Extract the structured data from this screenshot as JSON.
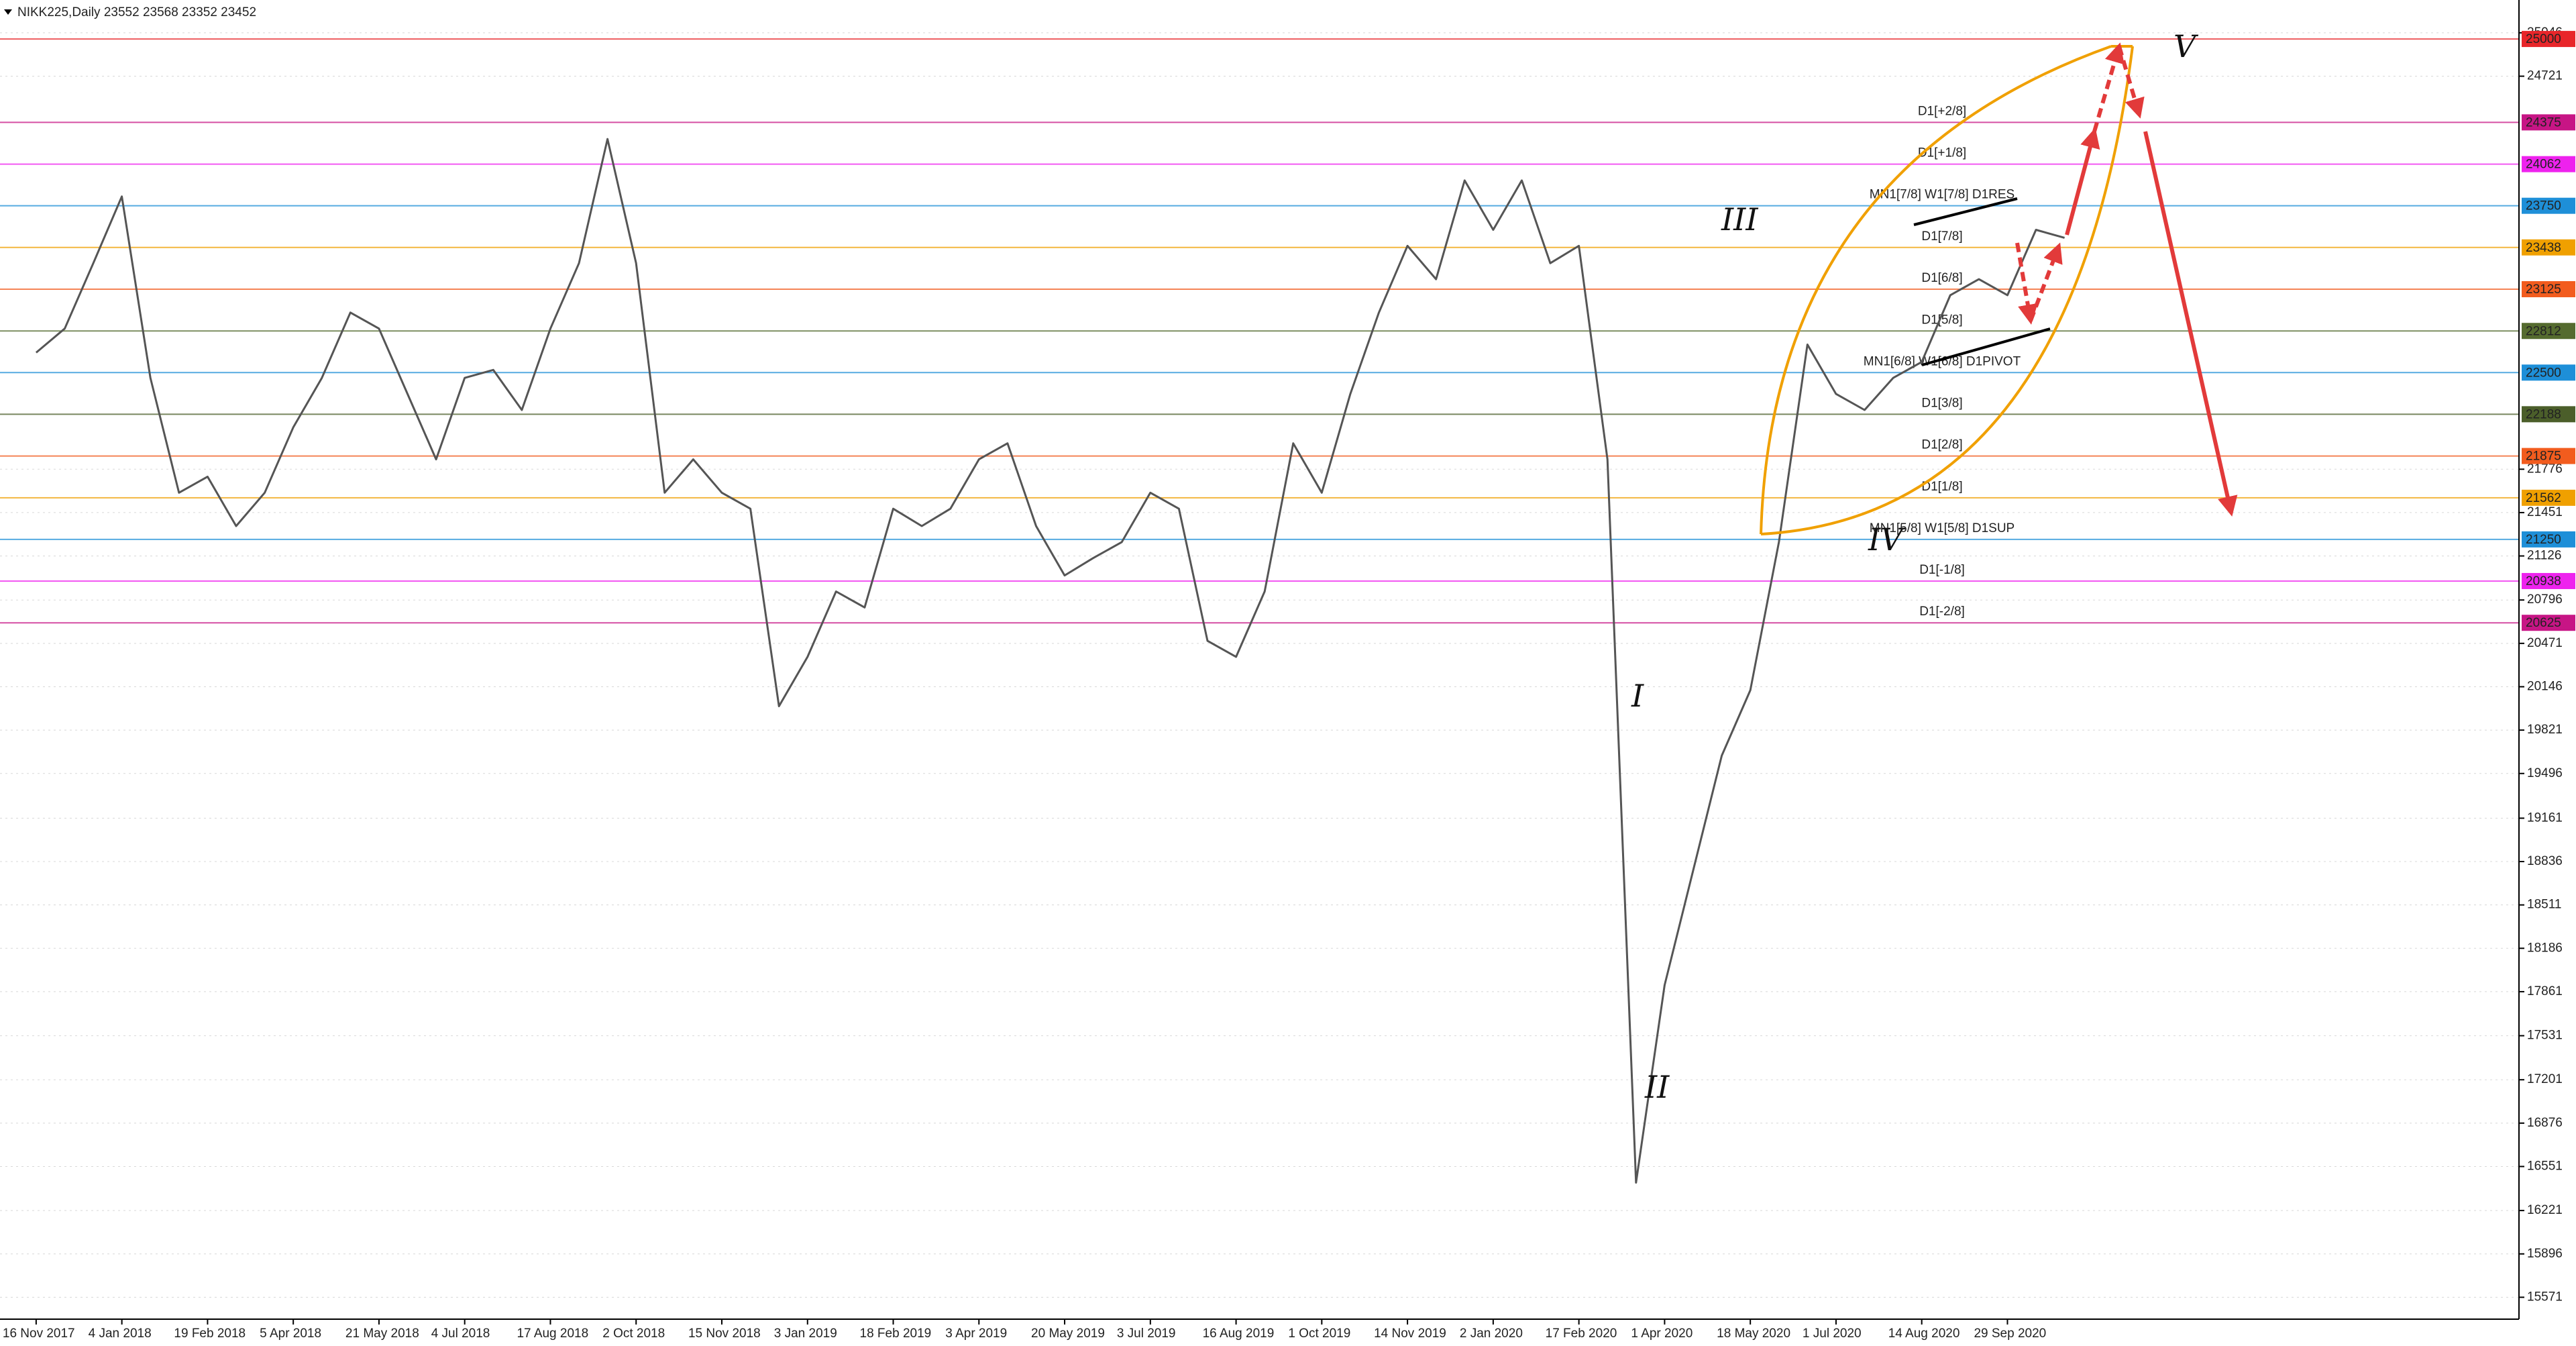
{
  "chart_data": {
    "type": "line",
    "header": "NIKK225,Daily  23552 23568 23352 23452",
    "categories": [
      "16 Nov 2017",
      null,
      null,
      "4 Jan 2018",
      null,
      null,
      "19 Feb 2018",
      null,
      null,
      "5 Apr 2018",
      null,
      null,
      "21 May 2018",
      null,
      null,
      "4 Jul 2018",
      null,
      null,
      "17 Aug 2018",
      null,
      null,
      "2 Oct 2018",
      null,
      null,
      "15 Nov 2018",
      null,
      null,
      "3 Jan 2019",
      null,
      null,
      "18 Feb 2019",
      null,
      null,
      "3 Apr 2019",
      null,
      null,
      "20 May 2019",
      null,
      null,
      "3 Jul 2019",
      null,
      null,
      "16 Aug 2019",
      null,
      null,
      "1 Oct 2019",
      null,
      null,
      "14 Nov 2019",
      null,
      null,
      "2 Jan 2020",
      null,
      null,
      "17 Feb 2020",
      null,
      null,
      "1 Apr 2020",
      null,
      null,
      "18 May 2020",
      null,
      null,
      "1 Jul 2020",
      null,
      null,
      "14 Aug 2020",
      null,
      null,
      "29 Sep 2020",
      null,
      null
    ],
    "series": [
      {
        "name": "NIKK225",
        "color": "#555555",
        "values": [
          22650,
          22830,
          23320,
          23820,
          22460,
          21600,
          21720,
          21350,
          21600,
          22090,
          22460,
          22950,
          22830,
          22340,
          21850,
          22460,
          22520,
          22220,
          22830,
          23320,
          24250,
          23320,
          21600,
          21850,
          21600,
          21480,
          20000,
          20370,
          20860,
          20740,
          21480,
          21350,
          21480,
          21850,
          21970,
          21350,
          20980,
          21110,
          21230,
          21600,
          21480,
          20490,
          20370,
          20860,
          21970,
          21600,
          22340,
          22950,
          23450,
          23200,
          23940,
          23570,
          23940,
          23320,
          23450,
          21850,
          16430,
          17910,
          18770,
          19630,
          20120,
          21230,
          22710,
          22340,
          22220,
          22460,
          22580,
          23080,
          23200,
          23080,
          23570,
          23510
        ]
      }
    ],
    "ylim": [
      15407,
      25292
    ],
    "yticks": [
      25046,
      24721,
      21776,
      21451,
      21126,
      20796,
      20471,
      20146,
      19821,
      19496,
      19161,
      18836,
      18511,
      18186,
      17861,
      17531,
      17201,
      16876,
      16551,
      16221,
      15896,
      15571
    ],
    "grid": true,
    "levels": [
      {
        "value": 25000,
        "color": "#e8262a"
      },
      {
        "value": 24375,
        "color": "#c71585",
        "text": "D1[+2/8]"
      },
      {
        "value": 24062,
        "color": "#ee22ee",
        "text": "D1[+1/8]"
      },
      {
        "value": 23750,
        "color": "#1e8fd8",
        "text": "MN1[7/8] W1[7/8] D1RES"
      },
      {
        "value": 23438,
        "color": "#f0a000",
        "text": "D1[7/8]"
      },
      {
        "value": 23125,
        "color": "#f25c1e",
        "text": "D1[6/8]"
      },
      {
        "value": 22812,
        "color": "#556b2f",
        "text": "D1[5/8]"
      },
      {
        "value": 22500,
        "color": "#1e8fd8",
        "text": "MN1[6/8] W1[6/8] D1PIVOT"
      },
      {
        "value": 22188,
        "color": "#4b5e2a",
        "text": "D1[3/8]"
      },
      {
        "value": 21875,
        "color": "#f25c1e",
        "text": "D1[2/8]"
      },
      {
        "value": 21562,
        "color": "#f0a000",
        "text": "D1[1/8]"
      },
      {
        "value": 21250,
        "color": "#1e8fd8",
        "text": "MN1[5/8] W1[5/8] D1SUP"
      },
      {
        "value": 20938,
        "color": "#ee22ee",
        "text": "D1[-1/8]"
      },
      {
        "value": 20625,
        "color": "#c71585",
        "text": "D1[-2/8]"
      }
    ],
    "annotations": [
      "I",
      "II",
      "III",
      "IV",
      "V"
    ]
  }
}
